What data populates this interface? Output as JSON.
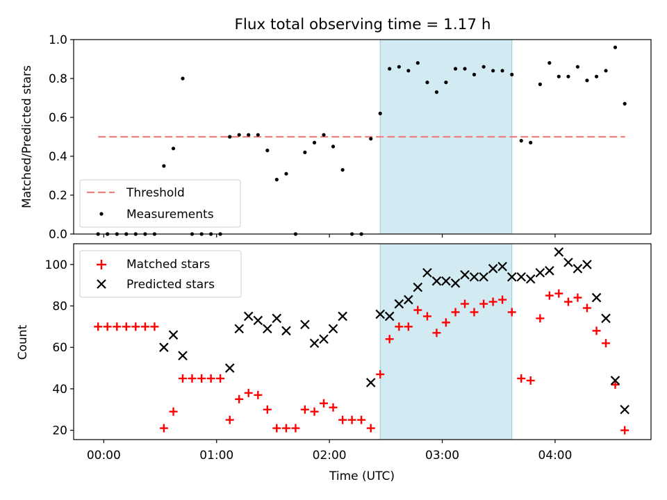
{
  "title": "Flux total observing time = 1.17 h",
  "colors": {
    "threshold": "#f08080",
    "band": "#add8e6",
    "matched": "#ff0000",
    "predicted": "#000000",
    "measure": "#000000"
  },
  "chart_data": [
    {
      "type": "scatter",
      "ylabel": "Matched/Predicted stars",
      "xlim_hours": [
        -0.2667,
        4.85
      ],
      "ylim": [
        0,
        1.0
      ],
      "yticks": [
        "0.0",
        "0.2",
        "0.4",
        "0.6",
        "0.8",
        "1.0"
      ],
      "shaded_band_hours": [
        2.45,
        3.617
      ],
      "legend_position": "lower-left",
      "threshold": {
        "name": "Threshold",
        "y": 0.5,
        "x_range_hours": [
          -0.05,
          4.62
        ]
      },
      "series": [
        {
          "name": "Measurements",
          "x_hours": [
            -0.05,
            0.033,
            0.117,
            0.2,
            0.283,
            0.367,
            0.45,
            0.533,
            0.617,
            0.7,
            0.783,
            0.867,
            0.95,
            1.033,
            1.117,
            1.2,
            1.283,
            1.367,
            1.45,
            1.533,
            1.617,
            1.7,
            1.783,
            1.867,
            1.95,
            2.033,
            2.117,
            2.2,
            2.283,
            2.367,
            2.45,
            2.533,
            2.617,
            2.7,
            2.783,
            2.867,
            2.95,
            3.033,
            3.117,
            3.2,
            3.283,
            3.367,
            3.45,
            3.533,
            3.617,
            3.7,
            3.783,
            3.867,
            3.95,
            4.033,
            4.117,
            4.2,
            4.283,
            4.367,
            4.45,
            4.533,
            4.617
          ],
          "y": [
            0,
            0,
            0,
            0,
            0,
            0,
            0,
            0.35,
            0.44,
            0.8,
            0,
            0,
            0,
            0,
            0.5,
            0.51,
            0.51,
            0.51,
            0.43,
            0.28,
            0.31,
            0,
            0.42,
            0.47,
            0.51,
            0.45,
            0.33,
            0,
            0,
            0.49,
            0.62,
            0.85,
            0.86,
            0.84,
            0.88,
            0.78,
            0.73,
            0.78,
            0.85,
            0.85,
            0.82,
            0.86,
            0.84,
            0.84,
            0.82,
            0.48,
            0.47,
            0.77,
            0.88,
            0.81,
            0.81,
            0.86,
            0.79,
            0.81,
            0.84,
            0.96,
            0.67
          ]
        }
      ]
    },
    {
      "type": "scatter",
      "ylabel": "Count",
      "xlabel": "Time (UTC)",
      "xlim_hours": [
        -0.2667,
        4.85
      ],
      "ylim": [
        15.5,
        110
      ],
      "yticks": [
        "20",
        "40",
        "60",
        "80",
        "100"
      ],
      "xticks": [
        {
          "h": 0,
          "label": "00:00"
        },
        {
          "h": 1,
          "label": "01:00"
        },
        {
          "h": 2,
          "label": "02:00"
        },
        {
          "h": 3,
          "label": "03:00"
        },
        {
          "h": 4,
          "label": "04:00"
        }
      ],
      "shaded_band_hours": [
        2.45,
        3.617
      ],
      "legend_position": "upper-left",
      "series": [
        {
          "name": "Matched stars",
          "marker": "plus",
          "x_hours": [
            -0.05,
            0.033,
            0.117,
            0.2,
            0.283,
            0.367,
            0.45,
            0.533,
            0.617,
            0.7,
            0.783,
            0.867,
            0.95,
            1.033,
            1.117,
            1.2,
            1.283,
            1.367,
            1.45,
            1.533,
            1.617,
            1.7,
            1.783,
            1.867,
            1.95,
            2.033,
            2.117,
            2.2,
            2.283,
            2.367,
            2.45,
            2.533,
            2.617,
            2.7,
            2.783,
            2.867,
            2.95,
            3.033,
            3.117,
            3.2,
            3.283,
            3.367,
            3.45,
            3.533,
            3.617,
            3.7,
            3.783,
            3.867,
            3.95,
            4.033,
            4.117,
            4.2,
            4.283,
            4.367,
            4.45,
            4.533,
            4.617
          ],
          "y": [
            70,
            70,
            70,
            70,
            70,
            70,
            70,
            21,
            29,
            45,
            45,
            45,
            45,
            45,
            25,
            35,
            38,
            37,
            30,
            21,
            21,
            21,
            30,
            29,
            33,
            31,
            25,
            25,
            25,
            21,
            47,
            64,
            70,
            70,
            78,
            75,
            67,
            72,
            77,
            81,
            77,
            81,
            82,
            83,
            77,
            45,
            44,
            74,
            85,
            86,
            82,
            84,
            79,
            68,
            62,
            42,
            20
          ]
        },
        {
          "name": "Predicted stars",
          "marker": "x",
          "x_hours": [
            0.533,
            0.617,
            0.7,
            1.117,
            1.2,
            1.283,
            1.367,
            1.45,
            1.533,
            1.617,
            1.783,
            1.867,
            1.95,
            2.033,
            2.117,
            2.367,
            2.45,
            2.533,
            2.617,
            2.7,
            2.783,
            2.867,
            2.95,
            3.033,
            3.117,
            3.2,
            3.283,
            3.367,
            3.45,
            3.533,
            3.617,
            3.7,
            3.783,
            3.867,
            3.95,
            4.033,
            4.117,
            4.2,
            4.283,
            4.367,
            4.45,
            4.533,
            4.617
          ],
          "y": [
            60,
            66,
            56,
            50,
            69,
            75,
            73,
            69,
            74,
            68,
            71,
            62,
            64,
            69,
            75,
            43,
            76,
            75,
            81,
            83,
            89,
            96,
            92,
            92,
            91,
            95,
            94,
            94,
            98,
            99,
            94,
            94,
            93,
            96,
            97,
            106,
            101,
            98,
            100,
            84,
            74,
            44,
            30
          ]
        }
      ]
    }
  ]
}
